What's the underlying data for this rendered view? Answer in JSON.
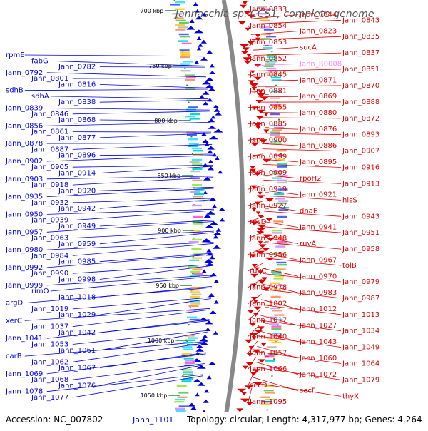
{
  "title": "Jannaschia sp. CCS1, complete genome",
  "footer": {
    "accession": "Accession: NC_007802",
    "topology": "Topology: circular; Length: 4,317,977 bp; Genes: 4,264",
    "bottom_gene": "Jann_1101"
  },
  "colors": {
    "forward": "#e00000",
    "reverse": "#0000e0",
    "rna": "#ff88ff",
    "tick": "#2a8c2a",
    "backbone": "#888888"
  },
  "kbp_labels": [
    "700 kbp",
    "750 kbp",
    "800 kbp",
    "850 kbp",
    "900 kbp",
    "950 kbp",
    "1000 kbp",
    "1050 kbp"
  ],
  "left_labels": [
    "rpmE",
    "fabG",
    "Jann_0782",
    "Jann_0792",
    "Jann_0801",
    "Jann_0816",
    "sdhB",
    "sdhA",
    "Jann_0838",
    "Jann_0839",
    "Jann_0846",
    "Jann_0868",
    "Jann_0856",
    "Jann_0861",
    "Jann_0877",
    "Jann_0878",
    "Jann_0887",
    "Jann_0896",
    "Jann_0902",
    "Jann_0905",
    "Jann_0914",
    "Jann_0903",
    "Jann_0918",
    "Jann_0920",
    "Jann_0935",
    "Jann_0932",
    "Jann_0942",
    "Jann_0950",
    "Jann_0939",
    "Jann_0949",
    "Jann_0957",
    "Jann_0963",
    "Jann_0959",
    "Jann_0980",
    "Jann_0984",
    "Jann_0985",
    "Jann_0992",
    "Jann_0990",
    "Jann_0998",
    "Jann_0999",
    "rimO",
    "Jann_1018",
    "argD",
    "Jann_1019",
    "Jann_1029",
    "xerC",
    "Jann_1037",
    "Jann_1042",
    "Jann_1041",
    "Jann_1053",
    "Jann_1061",
    "carB",
    "Jann_1062",
    "Jann_1067",
    "Jann_1069",
    "Jann_1068",
    "Jann_1076",
    "Jann_1078",
    "Jann_1077"
  ],
  "right_labels": [
    "Jann_0833",
    "Jann_0844",
    "Jann_0843",
    "Jann_0854",
    "Jann_0823",
    "Jann_0835",
    "Jann_0853",
    "sucA",
    "Jann_0837",
    "Jann_0852",
    "Jann_R0008",
    "Jann_0851",
    "Jann_0845",
    "Jann_0871",
    "Jann_0870",
    "Jann_0881",
    "Jann_0869",
    "Jann_0888",
    "Jann_0855",
    "Jann_0880",
    "Jann_0872",
    "Jann_0885",
    "Jann_0876",
    "Jann_0893",
    "Jann_0900",
    "Jann_0886",
    "Jann_0907",
    "Jann_0899",
    "Jann_0895",
    "Jann_0916",
    "Jann_0909",
    "rpoH2",
    "Jann_0913",
    "Jann_0919",
    "Jann_0921",
    "hisS",
    "Jann_0927",
    "dnaE",
    "Jann_0943",
    "rpsD",
    "Jann_0941",
    "Jann_0951",
    "Jann_0948",
    "ruvA",
    "Jann_0958",
    "Jann_0956",
    "Jann_0967",
    "tolB",
    "ruvC",
    "Jann_0970",
    "Jann_0979",
    "Jann_0978",
    "Jann_0983",
    "Jann_0987",
    "Jann_1002",
    "Jann_1012",
    "Jann_1013",
    "Jann_1017",
    "Jann_1027",
    "Jann_1034",
    "Jann_1040",
    "Jann_1043",
    "Jann_1049",
    "Jann_1057",
    "Jann_1060",
    "Jann_1064",
    "Jann_1066",
    "Jann_1072",
    "Jann_1079",
    "secD",
    "secF",
    "thyX",
    "Jann_1095"
  ]
}
